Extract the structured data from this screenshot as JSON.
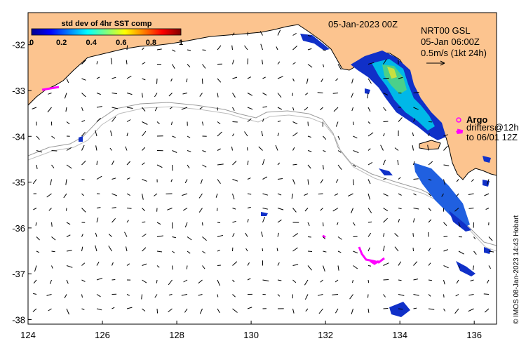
{
  "map": {
    "date_label": "05-Jan-2023 00Z",
    "product_label": "NRT00 GSL",
    "velocity_time_label": "05-Jan 06:00Z",
    "scale_label": "0.5m/s (1kt 24h)",
    "argo_label": "Argo",
    "drifters_label": "drifters@12h",
    "drifters_to_label": "to 06/01 12Z",
    "credit": "© IMOS 08-Jan-2023 14:43 Hobart",
    "colors": {
      "land": "#fcc48f",
      "ocean": "#ffffff",
      "isobath": "#9a9a9a",
      "coast": "#000000",
      "argo": "#ff00ff",
      "arrows": "#000000"
    }
  },
  "colorbar": {
    "title": "std dev of 4hr SST comp",
    "ticks": [
      "0",
      "0.2",
      "0.4",
      "0.6",
      "0.8",
      "1"
    ],
    "range": [
      0,
      1
    ],
    "colormap": "jet"
  },
  "axes": {
    "x_ticks": [
      "124",
      "126",
      "128",
      "130",
      "132",
      "134",
      "136"
    ],
    "y_ticks": [
      "-32",
      "-33",
      "-34",
      "-35",
      "-36",
      "-37",
      "-38"
    ],
    "xlim": [
      124,
      136.6
    ],
    "ylim": [
      -38.1,
      -31.3
    ]
  },
  "chart_data": {
    "type": "map",
    "title": "",
    "xlabel": "",
    "ylabel": "",
    "xlim": [
      124,
      136.6
    ],
    "ylim": [
      -38.1,
      -31.3
    ],
    "grid": false
  }
}
